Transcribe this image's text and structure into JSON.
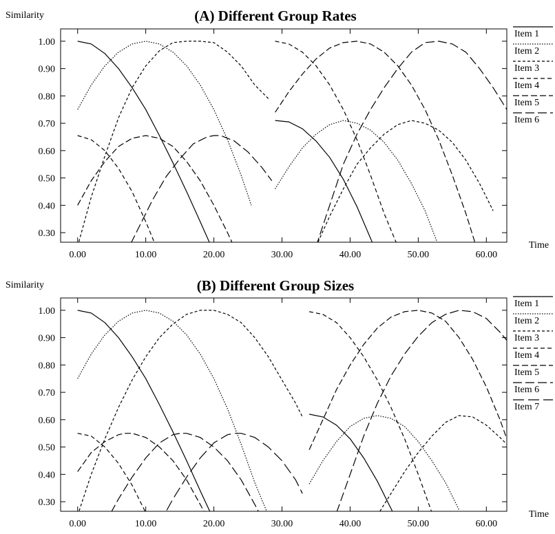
{
  "chart_data": [
    {
      "type": "line",
      "title": "(A) Different Group Rates",
      "ylabel": "Similarity",
      "xlabel": "Time",
      "xlim": [
        -2.5,
        63
      ],
      "ylim": [
        0.265,
        1.045
      ],
      "xticks": [
        0,
        10,
        20,
        30,
        40,
        50,
        60
      ],
      "xtick_labels": [
        "0.00",
        "10.00",
        "20.00",
        "30.00",
        "40.00",
        "50.00",
        "60.00"
      ],
      "yticks": [
        0.3,
        0.4,
        0.5,
        0.6,
        0.7,
        0.8,
        0.9,
        1.0
      ],
      "ytick_labels": [
        "0.30",
        "0.40",
        "0.50",
        "0.60",
        "0.70",
        "0.80",
        "0.90",
        "1.00"
      ],
      "legend_position": "right",
      "series": [
        {
          "name": "Item 1",
          "dash": "",
          "segments": [
            {
              "x": [
                0,
                2,
                4,
                6,
                8,
                10,
                12,
                14,
                16,
                18,
                20.5
              ],
              "y": [
                1.0,
                0.99,
                0.955,
                0.9,
                0.83,
                0.75,
                0.655,
                0.555,
                0.45,
                0.34,
                0.2
              ]
            },
            {
              "x": [
                29,
                31,
                33,
                35,
                37,
                39,
                41,
                43.5
              ],
              "y": [
                0.71,
                0.705,
                0.68,
                0.635,
                0.575,
                0.495,
                0.395,
                0.25
              ]
            }
          ]
        },
        {
          "name": "Item 2",
          "dash": "1.5,2",
          "segments": [
            {
              "x": [
                0,
                2,
                4,
                6,
                8,
                10,
                12,
                14,
                16,
                18,
                20,
                22,
                24,
                25.5
              ],
              "y": [
                0.75,
                0.84,
                0.91,
                0.96,
                0.99,
                1.0,
                0.99,
                0.96,
                0.91,
                0.84,
                0.75,
                0.64,
                0.51,
                0.4
              ]
            },
            {
              "x": [
                29,
                31,
                33,
                35,
                37,
                39,
                41,
                43,
                45,
                47,
                49,
                51,
                53
              ],
              "y": [
                0.46,
                0.54,
                0.61,
                0.66,
                0.695,
                0.71,
                0.7,
                0.675,
                0.63,
                0.565,
                0.48,
                0.38,
                0.25
              ]
            }
          ]
        },
        {
          "name": "Item 3",
          "dash": "4,3",
          "segments": [
            {
              "x": [
                0,
                2,
                4,
                6,
                8,
                10,
                12,
                14,
                16,
                18,
                20,
                22,
                24,
                26,
                28
              ],
              "y": [
                0.25,
                0.43,
                0.58,
                0.72,
                0.83,
                0.91,
                0.965,
                0.995,
                1.0,
                1.0,
                0.995,
                0.96,
                0.91,
                0.84,
                0.79
              ]
            },
            {
              "x": [
                35,
                37,
                39,
                41,
                43,
                45,
                47,
                49,
                51,
                53,
                55,
                57,
                59,
                61
              ],
              "y": [
                0.25,
                0.36,
                0.46,
                0.55,
                0.61,
                0.66,
                0.695,
                0.71,
                0.7,
                0.675,
                0.63,
                0.565,
                0.48,
                0.38
              ]
            }
          ]
        },
        {
          "name": "Item 4",
          "dash": "6,4",
          "segments": [
            {
              "x": [
                0,
                2,
                4,
                6,
                8,
                10,
                12,
                13.5
              ],
              "y": [
                0.655,
                0.64,
                0.6,
                0.535,
                0.45,
                0.34,
                0.22,
                0.15
              ]
            },
            {
              "x": [
                29,
                31,
                33,
                35,
                37,
                39,
                41,
                43,
                45,
                47,
                48.5
              ],
              "y": [
                1.0,
                0.99,
                0.96,
                0.91,
                0.84,
                0.75,
                0.64,
                0.51,
                0.37,
                0.25,
                0.2
              ]
            }
          ]
        },
        {
          "name": "Item 5",
          "dash": "9,4",
          "segments": [
            {
              "x": [
                0,
                2,
                4,
                6,
                8,
                10,
                12,
                14,
                16,
                18,
                20,
                22,
                23.5
              ],
              "y": [
                0.4,
                0.49,
                0.56,
                0.615,
                0.645,
                0.655,
                0.645,
                0.615,
                0.56,
                0.49,
                0.4,
                0.3,
                0.22
              ]
            },
            {
              "x": [
                29,
                31,
                33,
                35,
                37,
                39,
                41,
                43,
                45,
                47,
                49,
                51,
                53,
                55,
                57,
                58.5
              ],
              "y": [
                0.74,
                0.815,
                0.88,
                0.935,
                0.975,
                0.995,
                1.0,
                0.99,
                0.96,
                0.91,
                0.84,
                0.75,
                0.64,
                0.51,
                0.37,
                0.25
              ]
            }
          ]
        },
        {
          "name": "Item 6",
          "dash": "13,5",
          "segments": [
            {
              "x": [
                7,
                9,
                11,
                13,
                15,
                17,
                19,
                20,
                21,
                23,
                25,
                27,
                28.5
              ],
              "y": [
                0.22,
                0.32,
                0.42,
                0.505,
                0.57,
                0.625,
                0.65,
                0.655,
                0.655,
                0.635,
                0.595,
                0.54,
                0.49
              ]
            },
            {
              "x": [
                35,
                37,
                39,
                41,
                43,
                45,
                47,
                49,
                51,
                53,
                55,
                57,
                59,
                61,
                63
              ],
              "y": [
                0.25,
                0.4,
                0.55,
                0.66,
                0.75,
                0.83,
                0.9,
                0.96,
                0.995,
                1.0,
                0.99,
                0.96,
                0.9,
                0.83,
                0.75
              ]
            }
          ]
        }
      ]
    },
    {
      "type": "line",
      "title": "(B) Different Group Sizes",
      "ylabel": "Similarity",
      "xlabel": "Time",
      "xlim": [
        -2.5,
        63
      ],
      "ylim": [
        0.265,
        1.045
      ],
      "xticks": [
        0,
        10,
        20,
        30,
        40,
        50,
        60
      ],
      "xtick_labels": [
        "0.00",
        "10.00",
        "20.00",
        "30.00",
        "40.00",
        "50.00",
        "60.00"
      ],
      "yticks": [
        0.3,
        0.4,
        0.5,
        0.6,
        0.7,
        0.8,
        0.9,
        1.0
      ],
      "ytick_labels": [
        "0.30",
        "0.40",
        "0.50",
        "0.60",
        "0.70",
        "0.80",
        "0.90",
        "1.00"
      ],
      "legend_position": "right",
      "series": [
        {
          "name": "Item 1",
          "dash": "",
          "segments": [
            {
              "x": [
                0,
                2,
                4,
                6,
                8,
                10,
                12,
                14,
                16,
                18,
                19.5
              ],
              "y": [
                1.0,
                0.99,
                0.955,
                0.9,
                0.83,
                0.75,
                0.655,
                0.555,
                0.45,
                0.34,
                0.26
              ]
            },
            {
              "x": [
                34,
                36,
                38,
                40,
                42,
                44,
                46.5
              ],
              "y": [
                0.62,
                0.61,
                0.58,
                0.53,
                0.46,
                0.375,
                0.25
              ]
            }
          ]
        },
        {
          "name": "Item 2",
          "dash": "1.5,2",
          "segments": [
            {
              "x": [
                0,
                2,
                4,
                6,
                8,
                10,
                12,
                14,
                16,
                18,
                20,
                22,
                24,
                26,
                28,
                29.5
              ],
              "y": [
                0.75,
                0.84,
                0.91,
                0.96,
                0.99,
                1.0,
                0.99,
                0.96,
                0.91,
                0.84,
                0.75,
                0.64,
                0.51,
                0.37,
                0.25,
                0.2
              ]
            },
            {
              "x": [
                34,
                36,
                38,
                40,
                42,
                44,
                46,
                48,
                50,
                52,
                54,
                56
              ],
              "y": [
                0.365,
                0.45,
                0.52,
                0.575,
                0.605,
                0.615,
                0.605,
                0.575,
                0.52,
                0.45,
                0.37,
                0.27
              ]
            }
          ]
        },
        {
          "name": "Item 3",
          "dash": "4,3",
          "segments": [
            {
              "x": [
                0,
                2,
                4,
                6,
                8,
                10,
                12,
                14,
                16,
                18,
                20,
                22,
                24,
                26,
                28,
                30,
                32,
                33
              ],
              "y": [
                0.25,
                0.4,
                0.53,
                0.645,
                0.745,
                0.83,
                0.9,
                0.95,
                0.985,
                1.0,
                1.0,
                0.985,
                0.955,
                0.9,
                0.83,
                0.745,
                0.66,
                0.61
              ]
            },
            {
              "x": [
                44,
                46,
                48,
                50,
                52,
                54,
                56,
                58,
                60,
                62,
                63
              ],
              "y": [
                0.25,
                0.33,
                0.41,
                0.48,
                0.54,
                0.59,
                0.615,
                0.61,
                0.58,
                0.535,
                0.51
              ]
            }
          ]
        },
        {
          "name": "Item 4",
          "dash": "6,4",
          "segments": [
            {
              "x": [
                0,
                2,
                4,
                6,
                8,
                10,
                11.5
              ],
              "y": [
                0.55,
                0.54,
                0.5,
                0.44,
                0.36,
                0.26,
                0.2
              ]
            },
            {
              "x": [
                34,
                36,
                38,
                40,
                42,
                44,
                46,
                48,
                50,
                52,
                53.5
              ],
              "y": [
                0.995,
                0.985,
                0.955,
                0.9,
                0.83,
                0.745,
                0.645,
                0.53,
                0.4,
                0.26,
                0.18
              ]
            }
          ]
        },
        {
          "name": "Item 5",
          "dash": "9,4",
          "segments": [
            {
              "x": [
                0,
                2,
                4,
                6,
                7,
                8,
                10,
                12,
                14,
                16,
                18,
                19.5
              ],
              "y": [
                0.41,
                0.48,
                0.52,
                0.545,
                0.55,
                0.55,
                0.535,
                0.5,
                0.45,
                0.38,
                0.29,
                0.22
              ]
            },
            {
              "x": [
                34,
                36,
                38,
                40,
                42,
                44,
                46,
                48,
                50,
                52,
                54,
                56,
                58,
                60,
                62,
                63
              ],
              "y": [
                0.49,
                0.6,
                0.71,
                0.8,
                0.875,
                0.935,
                0.975,
                0.995,
                1.0,
                0.99,
                0.96,
                0.9,
                0.82,
                0.72,
                0.6,
                0.53
              ]
            }
          ]
        },
        {
          "name": "Item 6",
          "dash": "13,5",
          "segments": [
            {
              "x": [
                4,
                6,
                8,
                10,
                12,
                14,
                15,
                16,
                18,
                20,
                22,
                24,
                26,
                27.5
              ],
              "y": [
                0.22,
                0.31,
                0.39,
                0.46,
                0.515,
                0.545,
                0.55,
                0.55,
                0.535,
                0.5,
                0.45,
                0.38,
                0.29,
                0.22
              ]
            },
            {
              "x": [
                38,
                40,
                42,
                44,
                46,
                48,
                50,
                52,
                54,
                56,
                58,
                60,
                62,
                63
              ],
              "y": [
                0.26,
                0.4,
                0.54,
                0.66,
                0.76,
                0.84,
                0.905,
                0.955,
                0.985,
                1.0,
                0.995,
                0.97,
                0.92,
                0.89
              ]
            }
          ]
        },
        {
          "name": "Item 7",
          "dash": "16,6",
          "segments": [
            {
              "x": [
                12,
                14,
                16,
                18,
                20,
                22,
                23,
                24,
                26,
                28,
                30,
                32,
                33
              ],
              "y": [
                0.22,
                0.31,
                0.39,
                0.46,
                0.515,
                0.545,
                0.55,
                0.55,
                0.535,
                0.5,
                0.45,
                0.38,
                0.33
              ]
            }
          ]
        }
      ]
    }
  ]
}
